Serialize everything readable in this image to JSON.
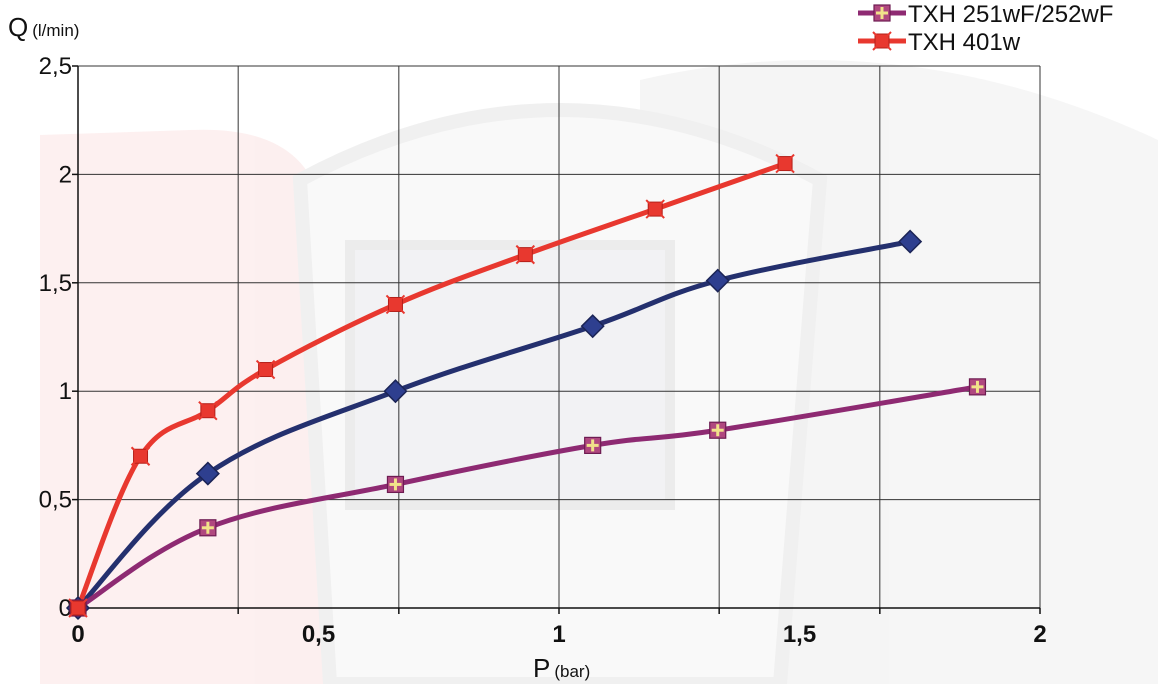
{
  "chart_data": {
    "type": "line",
    "ylabel": "Q",
    "ylabel_unit": "(l/min)",
    "xlabel": "P",
    "xlabel_unit": "(bar)",
    "xlim": [
      0,
      2
    ],
    "ylim": [
      0,
      2.5
    ],
    "x_ticks": [
      "0",
      "0,5",
      "1",
      "1,5",
      "2"
    ],
    "x_tick_values": [
      0,
      0.5,
      1,
      1.5,
      2
    ],
    "x_grid_values": [
      0,
      0.333,
      0.667,
      1.0,
      1.333,
      1.667,
      2.0
    ],
    "y_ticks": [
      "0",
      "0,5",
      "1",
      "1,5",
      "2",
      "2,5"
    ],
    "y_tick_values": [
      0,
      0.5,
      1,
      1.5,
      2,
      2.5
    ],
    "grid": true,
    "legend_position": "top-right",
    "series": [
      {
        "name": "",
        "color": "#24306e",
        "marker": "diamond",
        "x": [
          0,
          0.27,
          0.66,
          1.07,
          1.33,
          1.73
        ],
        "y": [
          0,
          0.62,
          1.0,
          1.3,
          1.51,
          1.69
        ]
      },
      {
        "name": "TXH 251wF/252wF",
        "color": "#8e2a72",
        "marker": "square-cross",
        "x": [
          0,
          0.27,
          0.66,
          1.07,
          1.33,
          1.87
        ],
        "y": [
          0,
          0.37,
          0.57,
          0.75,
          0.82,
          1.02
        ]
      },
      {
        "name": "TXH 401w",
        "color": "#e8382f",
        "marker": "square-star",
        "x": [
          0,
          0.13,
          0.27,
          0.39,
          0.66,
          0.93,
          1.2,
          1.47
        ],
        "y": [
          0,
          0.7,
          0.91,
          1.1,
          1.4,
          1.63,
          1.84,
          2.05
        ]
      }
    ]
  }
}
